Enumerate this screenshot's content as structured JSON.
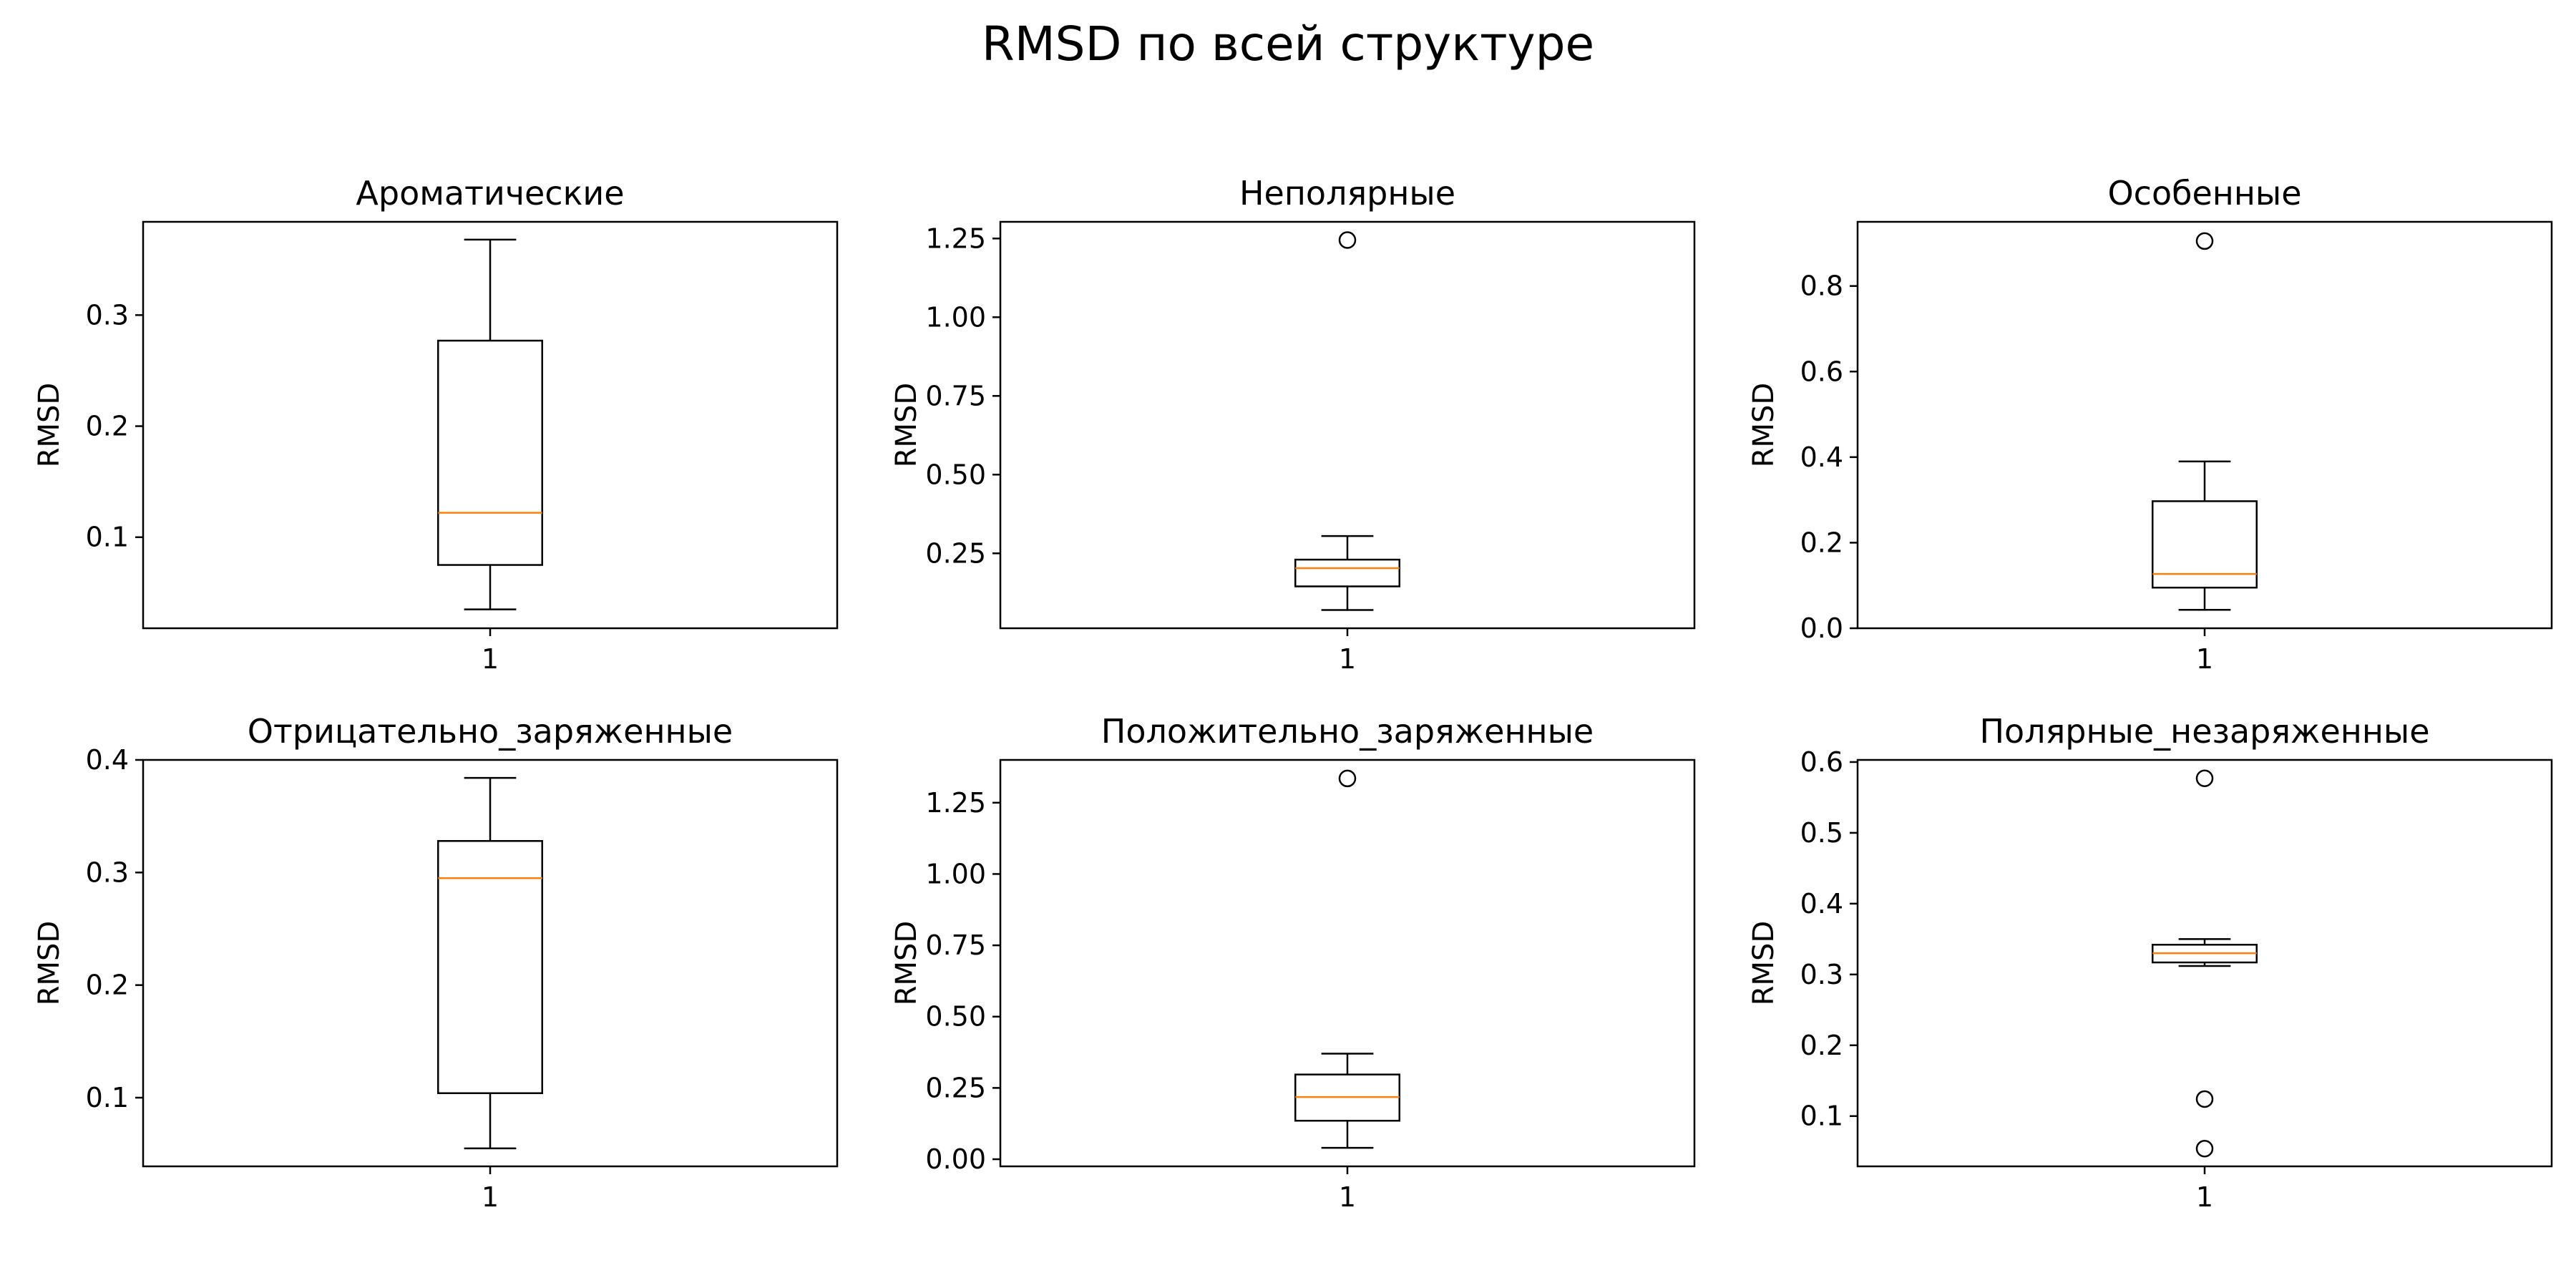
{
  "title": "RMSD по всей структуре",
  "style": {
    "box_color": "#000000",
    "median_color": "#ff7f0e",
    "outlier_color": "#000000",
    "background": "#ffffff"
  },
  "chart_data": [
    {
      "type": "box",
      "title": "Ароматические",
      "ylabel": "RMSD",
      "ylim": [
        0.018,
        0.384
      ],
      "yticks": [
        0.1,
        0.2,
        0.3
      ],
      "yticklabels": [
        "0.1",
        "0.2",
        "0.3"
      ],
      "categories": [
        "1"
      ],
      "whisker_low": 0.035,
      "q1": 0.075,
      "median": 0.122,
      "q3": 0.277,
      "whisker_high": 0.368,
      "outliers": []
    },
    {
      "type": "box",
      "title": "Неполярные",
      "ylabel": "RMSD",
      "ylim": [
        0.012,
        1.303
      ],
      "yticks": [
        0.25,
        0.5,
        0.75,
        1.0,
        1.25
      ],
      "yticklabels": [
        "0.25",
        "0.50",
        "0.75",
        "1.00",
        "1.25"
      ],
      "categories": [
        "1"
      ],
      "whisker_low": 0.07,
      "q1": 0.145,
      "median": 0.203,
      "q3": 0.23,
      "whisker_high": 0.305,
      "outliers": [
        1.245
      ]
    },
    {
      "type": "box",
      "title": "Особенные",
      "ylabel": "RMSD",
      "ylim": [
        0.0,
        0.95
      ],
      "yticks": [
        0.0,
        0.2,
        0.4,
        0.6,
        0.8
      ],
      "yticklabels": [
        "0.0",
        "0.2",
        "0.4",
        "0.6",
        "0.8"
      ],
      "categories": [
        "1"
      ],
      "whisker_low": 0.043,
      "q1": 0.095,
      "median": 0.127,
      "q3": 0.297,
      "whisker_high": 0.39,
      "outliers": [
        0.905
      ]
    },
    {
      "type": "box",
      "title": "Отрицательно_заряженные",
      "ylabel": "RMSD",
      "ylim": [
        0.039,
        0.4
      ],
      "yticks": [
        0.1,
        0.2,
        0.3,
        0.4
      ],
      "yticklabels": [
        "0.1",
        "0.2",
        "0.3",
        "0.4"
      ],
      "categories": [
        "1"
      ],
      "whisker_low": 0.055,
      "q1": 0.104,
      "median": 0.295,
      "q3": 0.328,
      "whisker_high": 0.384,
      "outliers": []
    },
    {
      "type": "box",
      "title": "Положительно_заряженные",
      "ylabel": "RMSD",
      "ylim": [
        -0.025,
        1.4
      ],
      "yticks": [
        0.0,
        0.25,
        0.5,
        0.75,
        1.0,
        1.25
      ],
      "yticklabels": [
        "0.00",
        "0.25",
        "0.50",
        "0.75",
        "1.00",
        "1.25"
      ],
      "categories": [
        "1"
      ],
      "whisker_low": 0.04,
      "q1": 0.135,
      "median": 0.218,
      "q3": 0.297,
      "whisker_high": 0.37,
      "outliers": [
        1.335
      ]
    },
    {
      "type": "box",
      "title": "Полярные_незаряженные",
      "ylabel": "RMSD",
      "ylim": [
        0.029,
        0.603
      ],
      "yticks": [
        0.1,
        0.2,
        0.3,
        0.4,
        0.5,
        0.6
      ],
      "yticklabels": [
        "0.1",
        "0.2",
        "0.3",
        "0.4",
        "0.5",
        "0.6"
      ],
      "categories": [
        "1"
      ],
      "whisker_low": 0.312,
      "q1": 0.317,
      "median": 0.33,
      "q3": 0.342,
      "whisker_high": 0.35,
      "outliers": [
        0.577,
        0.124,
        0.054
      ]
    }
  ]
}
